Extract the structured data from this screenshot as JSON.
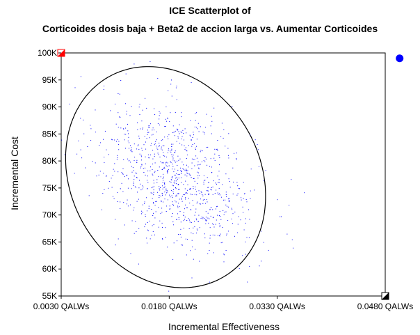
{
  "chart_data": {
    "type": "scatter",
    "title": "ICE Scatterplot of",
    "subtitle": "Corticoides dosis baja + Beta2 de accion larga vs. Aumentar Corticoides",
    "xlabel": "Incremental Effectiveness",
    "ylabel": "Incremental Cost",
    "xlim": [
      0.003,
      0.048
    ],
    "ylim": [
      55000,
      100000
    ],
    "x_ticks": [
      {
        "value": 0.003,
        "label": "0.0030 QALWs"
      },
      {
        "value": 0.018,
        "label": "0.0180 QALWs"
      },
      {
        "value": 0.033,
        "label": "0.0330 QALWs"
      },
      {
        "value": 0.048,
        "label": "0.0480 QALWs"
      }
    ],
    "y_ticks": [
      {
        "value": 55000,
        "label": "55K"
      },
      {
        "value": 60000,
        "label": "60K"
      },
      {
        "value": 65000,
        "label": "65K"
      },
      {
        "value": 70000,
        "label": "70K"
      },
      {
        "value": 75000,
        "label": "75K"
      },
      {
        "value": 80000,
        "label": "80K"
      },
      {
        "value": 85000,
        "label": "85K"
      },
      {
        "value": 90000,
        "label": "90K"
      },
      {
        "value": 95000,
        "label": "95K"
      },
      {
        "value": 100000,
        "label": "100K"
      }
    ],
    "point_cloud": {
      "count": 1000,
      "mean_x": 0.019,
      "mean_y": 77000,
      "sd_x": 0.0055,
      "sd_y": 7000,
      "correlation": -0.35,
      "color": "#0000ff"
    },
    "confidence_ellipse": {
      "center_x": 0.0175,
      "center_y": 77000,
      "semi_axis_x": 0.016,
      "semi_axis_y": 17500,
      "rotation_deg": 60,
      "color": "#000000"
    },
    "corner_markers": [
      {
        "x": 0.003,
        "y": 100000,
        "color": "#ff0000",
        "shape": "square"
      },
      {
        "x": 0.048,
        "y": 55000,
        "color": "#000000",
        "shape": "square"
      }
    ],
    "mean_marker": {
      "x": 0.05,
      "y": 99000,
      "color": "#0000ff",
      "shape": "circle"
    },
    "grid": false,
    "legend": "none"
  }
}
